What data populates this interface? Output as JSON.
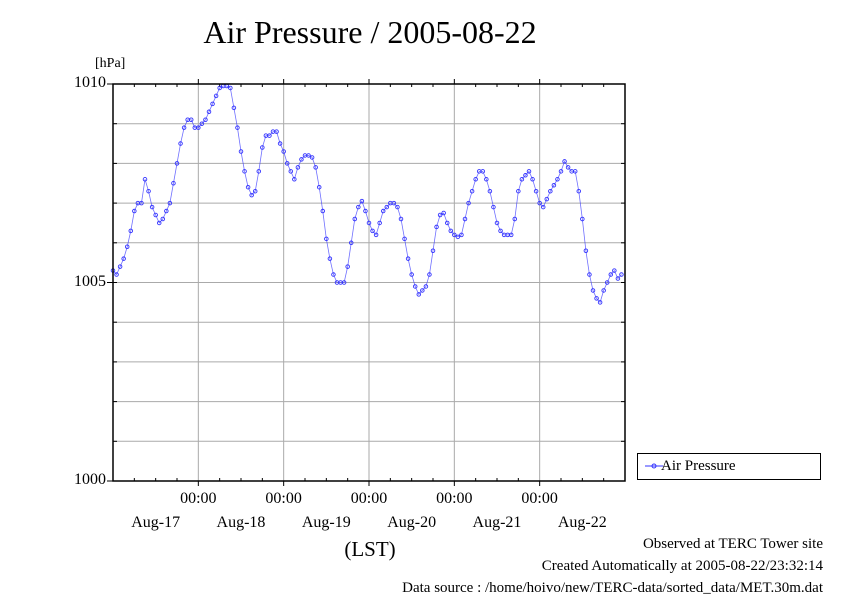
{
  "chart_data": {
    "type": "line",
    "title": "Air Pressure / 2005-08-22",
    "ylabel_unit": "[hPa]",
    "xlabel": "(LST)",
    "ylim": [
      1000,
      1010
    ],
    "yticks": [
      {
        "value": 1010,
        "label": "1010"
      },
      {
        "value": 1005,
        "label": "1005"
      },
      {
        "value": 1000,
        "label": "1000"
      }
    ],
    "x_range_hours": [
      0,
      144
    ],
    "x_time_ticks": [
      {
        "hour": 24,
        "label": "00:00"
      },
      {
        "hour": 48,
        "label": "00:00"
      },
      {
        "hour": 72,
        "label": "00:00"
      },
      {
        "hour": 96,
        "label": "00:00"
      },
      {
        "hour": 120,
        "label": "00:00"
      }
    ],
    "x_date_labels": [
      {
        "hour": 12,
        "label": "Aug-17"
      },
      {
        "hour": 36,
        "label": "Aug-18"
      },
      {
        "hour": 60,
        "label": "Aug-19"
      },
      {
        "hour": 84,
        "label": "Aug-20"
      },
      {
        "hour": 108,
        "label": "Aug-21"
      },
      {
        "hour": 132,
        "label": "Aug-22"
      }
    ],
    "grid": true,
    "legend_position": "right-bottom",
    "series": [
      {
        "name": "Air Pressure",
        "color": "#3333ff",
        "x_hours": [
          0,
          1,
          2,
          3,
          4,
          5,
          6,
          7,
          8,
          9,
          10,
          11,
          12,
          13,
          14,
          15,
          16,
          17,
          18,
          19,
          20,
          21,
          22,
          23,
          24,
          25,
          26,
          27,
          28,
          29,
          30,
          31,
          32,
          33,
          34,
          35,
          36,
          37,
          38,
          39,
          40,
          41,
          42,
          43,
          44,
          45,
          46,
          47,
          48,
          49,
          50,
          51,
          52,
          53,
          54,
          55,
          56,
          57,
          58,
          59,
          60,
          61,
          62,
          63,
          64,
          65,
          66,
          67,
          68,
          69,
          70,
          71,
          72,
          73,
          74,
          75,
          76,
          77,
          78,
          79,
          80,
          81,
          82,
          83,
          84,
          85,
          86,
          87,
          88,
          89,
          90,
          91,
          92,
          93,
          94,
          95,
          96,
          97,
          98,
          99,
          100,
          101,
          102,
          103,
          104,
          105,
          106,
          107,
          108,
          109,
          110,
          111,
          112,
          113,
          114,
          115,
          116,
          117,
          118,
          119,
          120,
          121,
          122,
          123,
          124,
          125,
          126,
          127,
          128,
          129,
          130,
          131,
          132,
          133,
          134,
          135,
          136,
          137,
          138,
          139,
          140,
          141,
          142,
          143
        ],
        "values": [
          1005.3,
          1005.2,
          1005.4,
          1005.6,
          1005.9,
          1006.3,
          1006.8,
          1007.0,
          1007.0,
          1007.6,
          1007.3,
          1006.9,
          1006.7,
          1006.5,
          1006.6,
          1006.8,
          1007.0,
          1007.5,
          1008.0,
          1008.5,
          1008.9,
          1009.1,
          1009.1,
          1008.9,
          1008.9,
          1009.0,
          1009.1,
          1009.3,
          1009.5,
          1009.7,
          1009.9,
          1009.95,
          1009.95,
          1009.9,
          1009.4,
          1008.9,
          1008.3,
          1007.8,
          1007.4,
          1007.2,
          1007.3,
          1007.8,
          1008.4,
          1008.7,
          1008.7,
          1008.8,
          1008.8,
          1008.5,
          1008.3,
          1008.0,
          1007.8,
          1007.6,
          1007.9,
          1008.1,
          1008.2,
          1008.2,
          1008.15,
          1007.9,
          1007.4,
          1006.8,
          1006.1,
          1005.6,
          1005.2,
          1005.0,
          1005.0,
          1005.0,
          1005.4,
          1006.0,
          1006.6,
          1006.9,
          1007.05,
          1006.8,
          1006.5,
          1006.3,
          1006.2,
          1006.5,
          1006.8,
          1006.9,
          1007.0,
          1007.0,
          1006.9,
          1006.6,
          1006.1,
          1005.6,
          1005.2,
          1004.9,
          1004.7,
          1004.8,
          1004.9,
          1005.2,
          1005.8,
          1006.4,
          1006.7,
          1006.75,
          1006.5,
          1006.3,
          1006.2,
          1006.15,
          1006.2,
          1006.6,
          1007.0,
          1007.3,
          1007.6,
          1007.8,
          1007.8,
          1007.6,
          1007.3,
          1006.9,
          1006.5,
          1006.3,
          1006.2,
          1006.2,
          1006.2,
          1006.6,
          1007.3,
          1007.6,
          1007.7,
          1007.8,
          1007.6,
          1007.3,
          1007.0,
          1006.9,
          1007.1,
          1007.3,
          1007.45,
          1007.6,
          1007.8,
          1008.05,
          1007.9,
          1007.8,
          1007.8,
          1007.3,
          1006.6,
          1005.8,
          1005.2,
          1004.8,
          1004.6,
          1004.5,
          1004.8,
          1005.0,
          1005.2,
          1005.3,
          1005.1,
          1005.2
        ]
      }
    ]
  },
  "footer": {
    "observed": "Observed at TERC Tower site",
    "created": "Created Automatically at 2005-08-22/23:32:14",
    "source": "Data source : /home/hoivo/new/TERC-data/sorted_data/MET.30m.dat"
  }
}
